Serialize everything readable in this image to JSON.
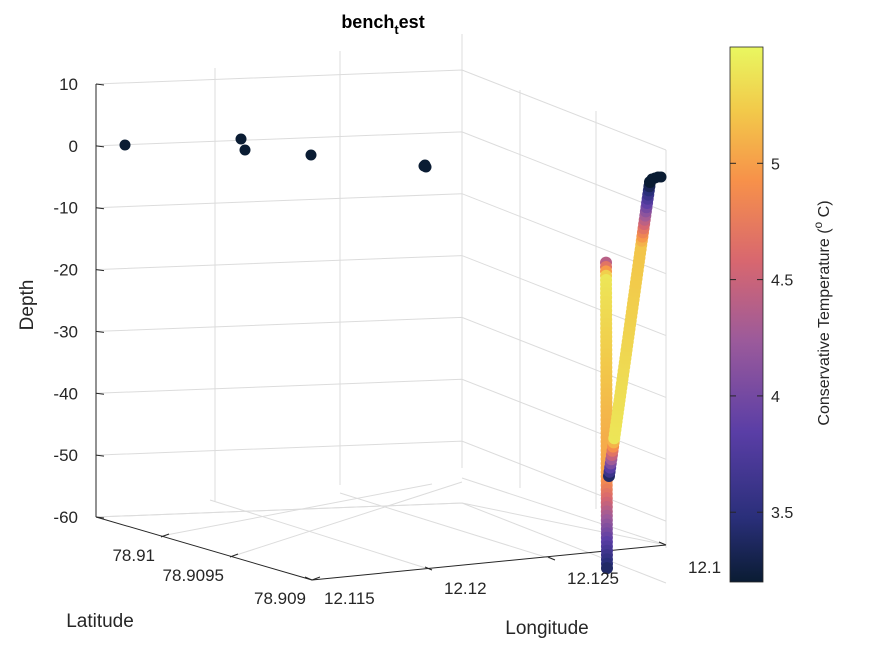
{
  "chart_data": {
    "type": "scatter",
    "title_main": "bench",
    "title_sub": "t",
    "title_tail": "est",
    "xlabel": "Longitude",
    "ylabel": "Latitude",
    "zlabel": "Depth",
    "colorbar_label": "Conservative Temperature (",
    "colorbar_label_sup": "o",
    "colorbar_label_tail": " C)",
    "xlim": [
      12.113,
      12.1285
    ],
    "ylim": [
      78.9088,
      78.9103
    ],
    "zlim": [
      -60,
      10
    ],
    "clim": [
      3.2,
      5.5
    ],
    "z_ticks": [
      "10",
      "0",
      "-10",
      "-20",
      "-30",
      "-40",
      "-50",
      "-60"
    ],
    "x_ticks": [
      "12.115",
      "12.12",
      "12.125",
      "12.1"
    ],
    "y_ticks": [
      "78.91",
      "78.9095",
      "78.909"
    ],
    "colorbar_ticks": [
      "3.5",
      "4",
      "4.5",
      "5"
    ],
    "grid": true,
    "colormap": "thermal",
    "surface_points": [
      {
        "lon": 12.1148,
        "lat": 78.9102,
        "depth": -2.0,
        "temp": 3.2
      },
      {
        "lon": 12.1168,
        "lat": 78.9102,
        "depth": 0.5,
        "temp": 3.2
      },
      {
        "lon": 12.1168,
        "lat": 78.9101,
        "depth": -1.0,
        "temp": 3.2
      },
      {
        "lon": 12.1178,
        "lat": 78.9101,
        "depth": -2.0,
        "temp": 3.2
      },
      {
        "lon": 12.1198,
        "lat": 78.9101,
        "depth": -4.0,
        "temp": 3.2
      }
    ],
    "profile_down": {
      "start_depth": -4,
      "end_depth": -53,
      "temp_top": 4.4,
      "temp_upper": 5.4,
      "temp_deep": 3.7,
      "temp_bottom": 3.4
    },
    "profile_up": {
      "start_depth": -53,
      "end_depth": -4,
      "temp_bottom": 3.4,
      "temp_mid": 5.0,
      "temp_upper": 5.4,
      "temp_top": 3.2
    }
  }
}
